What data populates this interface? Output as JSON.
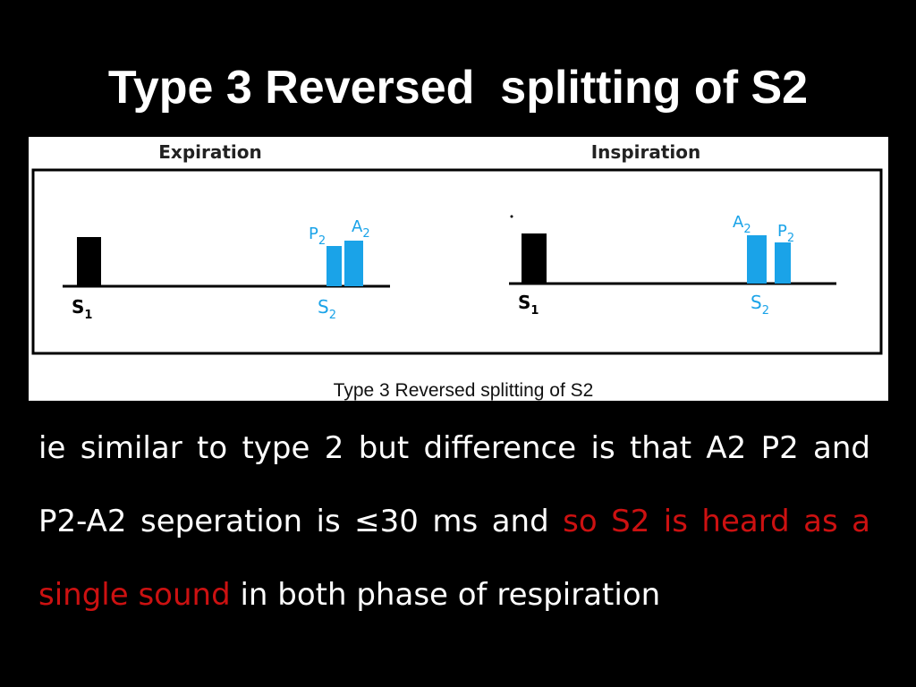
{
  "slide": {
    "title": "Type 3 Reversed  splitting of S2"
  },
  "figure": {
    "panels": [
      {
        "heading": "Expiration",
        "s1_label": "S1",
        "s2_label": "S2",
        "first_component": "P2",
        "second_component": "A2"
      },
      {
        "heading": "Inspiration",
        "s1_label": "S1",
        "s2_label": "S2",
        "first_component": "A2",
        "second_component": "P2"
      }
    ],
    "caption": "Type 3 Reversed splitting of S2",
    "colors": {
      "s1_bar": "#000000",
      "s2_bars": "#1aa3e8",
      "frame": "#000000"
    }
  },
  "body": {
    "part1": "ie similar to type 2 but difference is that A2 P2 and P2-A2  seperation is ≤30 ms and ",
    "highlight": "so S2 is heard as a single sound",
    "part2": " in both phase of respiration",
    "highlight_color": "#cc1111"
  }
}
